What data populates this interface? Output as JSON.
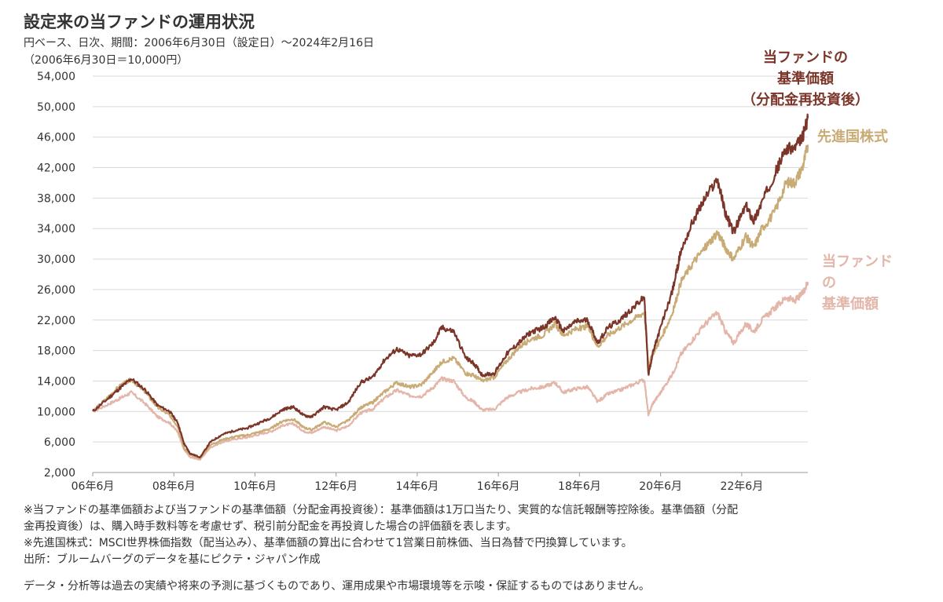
{
  "header": {
    "title": "設定来の当ファンドの運用状況",
    "subtitle": "円ベース、日次、期間：2006年6月30日（設定日）〜2024年2月16日",
    "subtitle2": "（2006年6月30日＝10,000円）"
  },
  "chart_data": {
    "type": "line",
    "ylim": [
      2000,
      54000
    ],
    "xlim": [
      2006.5,
      2024.13
    ],
    "y_ticks": [
      "54,000",
      "50,000",
      "46,000",
      "42,000",
      "38,000",
      "34,000",
      "30,000",
      "26,000",
      "22,000",
      "18,000",
      "14,000",
      "10,000",
      "6,000",
      "2,000"
    ],
    "y_tick_values": [
      54000,
      50000,
      46000,
      42000,
      38000,
      34000,
      30000,
      26000,
      22000,
      18000,
      14000,
      10000,
      6000,
      2000
    ],
    "x_ticks": [
      "06年6月",
      "08年6月",
      "10年6月",
      "12年6月",
      "14年6月",
      "16年6月",
      "18年6月",
      "20年6月",
      "22年6月"
    ],
    "x_tick_values": [
      2006.5,
      2008.5,
      2010.5,
      2012.5,
      2014.5,
      2016.5,
      2018.5,
      2020.5,
      2022.5
    ],
    "grid": "horizontal",
    "series": [
      {
        "name": "当ファンドの基準価額（分配金再投資後）",
        "color": "#7b3529",
        "x": [
          2006.5,
          2006.9,
          2007.2,
          2007.45,
          2007.8,
          2008.1,
          2008.4,
          2008.6,
          2008.75,
          2008.9,
          2009.15,
          2009.4,
          2009.7,
          2010.0,
          2010.3,
          2010.6,
          2010.9,
          2011.2,
          2011.45,
          2011.7,
          2011.9,
          2012.2,
          2012.5,
          2012.8,
          2013.1,
          2013.4,
          2013.7,
          2014.0,
          2014.3,
          2014.6,
          2014.9,
          2015.1,
          2015.4,
          2015.7,
          2015.9,
          2016.1,
          2016.4,
          2016.7,
          2017.0,
          2017.3,
          2017.6,
          2017.9,
          2018.1,
          2018.4,
          2018.7,
          2018.95,
          2019.2,
          2019.5,
          2019.8,
          2020.1,
          2020.2,
          2020.3,
          2020.5,
          2020.8,
          2021.0,
          2021.3,
          2021.6,
          2021.9,
          2022.1,
          2022.3,
          2022.6,
          2022.8,
          2023.0,
          2023.3,
          2023.6,
          2023.8,
          2024.0,
          2024.13
        ],
        "y": [
          10000,
          11800,
          13200,
          14300,
          12800,
          10800,
          10000,
          8500,
          5800,
          4500,
          4000,
          6000,
          7000,
          7500,
          7800,
          8500,
          9200,
          10300,
          10600,
          9500,
          9300,
          10600,
          10200,
          11200,
          13800,
          14500,
          16800,
          18200,
          17300,
          17500,
          19000,
          21000,
          20500,
          17000,
          16300,
          14800,
          15000,
          17500,
          19000,
          20400,
          21000,
          22300,
          20500,
          21800,
          22000,
          19000,
          21000,
          22000,
          23500,
          25000,
          14800,
          17500,
          21000,
          26000,
          31000,
          35000,
          38000,
          40500,
          36000,
          33500,
          37000,
          35000,
          37500,
          41000,
          44500,
          44500,
          46000,
          48500
        ]
      },
      {
        "name": "先進国株式",
        "color": "#c9ab76",
        "x": [
          2006.5,
          2006.9,
          2007.2,
          2007.45,
          2007.8,
          2008.1,
          2008.4,
          2008.6,
          2008.75,
          2008.9,
          2009.15,
          2009.4,
          2009.7,
          2010.0,
          2010.3,
          2010.6,
          2010.9,
          2011.2,
          2011.45,
          2011.7,
          2011.9,
          2012.2,
          2012.5,
          2012.8,
          2013.1,
          2013.4,
          2013.7,
          2014.0,
          2014.3,
          2014.6,
          2014.9,
          2015.1,
          2015.4,
          2015.7,
          2015.9,
          2016.1,
          2016.4,
          2016.7,
          2017.0,
          2017.3,
          2017.6,
          2017.9,
          2018.1,
          2018.4,
          2018.7,
          2018.95,
          2019.2,
          2019.5,
          2019.8,
          2020.1,
          2020.2,
          2020.3,
          2020.5,
          2020.8,
          2021.0,
          2021.3,
          2021.6,
          2021.9,
          2022.1,
          2022.3,
          2022.6,
          2022.8,
          2023.0,
          2023.3,
          2023.6,
          2023.8,
          2024.0,
          2024.13
        ],
        "y": [
          10000,
          12000,
          13500,
          14200,
          12500,
          10500,
          9500,
          8000,
          5200,
          4300,
          3900,
          5600,
          6300,
          6700,
          6900,
          7300,
          7800,
          8800,
          9000,
          7900,
          7600,
          8600,
          8000,
          8800,
          10500,
          11200,
          12600,
          13800,
          13200,
          13500,
          15200,
          16500,
          17000,
          15000,
          14700,
          14000,
          14500,
          16600,
          18400,
          19500,
          20000,
          21500,
          20000,
          20800,
          21200,
          18500,
          20000,
          21000,
          22000,
          23000,
          16000,
          17500,
          19500,
          23000,
          27000,
          29500,
          31500,
          33500,
          31500,
          30000,
          33000,
          31500,
          34000,
          36000,
          40000,
          40000,
          42000,
          45000
        ]
      },
      {
        "name": "当ファンドの基準価額",
        "color": "#e4b6aa",
        "x": [
          2006.5,
          2006.9,
          2007.2,
          2007.45,
          2007.8,
          2008.1,
          2008.4,
          2008.6,
          2008.75,
          2008.9,
          2009.15,
          2009.4,
          2009.7,
          2010.0,
          2010.3,
          2010.6,
          2010.9,
          2011.2,
          2011.45,
          2011.7,
          2011.9,
          2012.2,
          2012.5,
          2012.8,
          2013.1,
          2013.4,
          2013.7,
          2014.0,
          2014.3,
          2014.6,
          2014.9,
          2015.1,
          2015.4,
          2015.7,
          2015.9,
          2016.1,
          2016.4,
          2016.7,
          2017.0,
          2017.3,
          2017.6,
          2017.9,
          2018.1,
          2018.4,
          2018.7,
          2018.95,
          2019.2,
          2019.5,
          2019.8,
          2020.1,
          2020.2,
          2020.3,
          2020.5,
          2020.8,
          2021.0,
          2021.3,
          2021.6,
          2021.9,
          2022.1,
          2022.3,
          2022.6,
          2022.8,
          2023.0,
          2023.3,
          2023.6,
          2023.8,
          2024.0,
          2024.13
        ],
        "y": [
          10000,
          11000,
          11800,
          12500,
          11000,
          9300,
          8500,
          7300,
          5000,
          4000,
          3700,
          5300,
          6000,
          6400,
          6600,
          7000,
          7400,
          8200,
          8400,
          7400,
          7200,
          8000,
          7500,
          8100,
          9800,
          10300,
          11800,
          12800,
          12100,
          12000,
          13200,
          14300,
          14000,
          11800,
          11300,
          10200,
          10300,
          11800,
          12500,
          13000,
          13200,
          13800,
          12500,
          13000,
          13200,
          11300,
          12300,
          12800,
          13500,
          14200,
          9500,
          11000,
          12500,
          15000,
          17500,
          19500,
          21500,
          23000,
          20500,
          19000,
          21500,
          20500,
          22000,
          23500,
          25000,
          24500,
          25500,
          27000
        ]
      }
    ],
    "labels": {
      "nav_reinvested": [
        "当ファンドの",
        "基準価額",
        "（分配金再投資後）"
      ],
      "developed": "先進国株式",
      "nav": [
        "当ファンド",
        "の",
        "基準価額"
      ]
    }
  },
  "notes": [
    "※当ファンドの基準価額および当ファンドの基準価額（分配金再投資後）：基準価額は1万口当たり、実質的な信託報酬等控除後。基準価額（分配",
    "金再投資後）は、購入時手数料等を考慮せず、税引前分配金を再投資した場合の評価額を表します。",
    "※先進国株式：MSCI世界株価指数（配当込み）、基準価額の算出に合わせて1営業日前株価、当日為替で円換算しています。",
    "出所：ブルームバーグのデータを基にピクテ・ジャパン作成"
  ],
  "disclaimer": "データ・分析等は過去の実績や将来の予測に基づくものであり、運用成果や市場環境等を示唆・保証するものではありません。"
}
